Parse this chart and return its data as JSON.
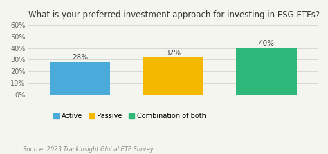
{
  "title": "What is your preferred investment approach for investing in ESG ETFs?",
  "categories": [
    "Active",
    "Passive",
    "Combination of both"
  ],
  "values": [
    28,
    32,
    40
  ],
  "bar_colors": [
    "#4AABDB",
    "#F5B800",
    "#2DB87A"
  ],
  "bar_labels": [
    "28%",
    "32%",
    "40%"
  ],
  "ylim": [
    0,
    60
  ],
  "yticks": [
    0,
    10,
    20,
    30,
    40,
    50,
    60
  ],
  "ytick_labels": [
    "0%",
    "10%",
    "20%",
    "30%",
    "40%",
    "50%",
    "60%"
  ],
  "legend_labels": [
    "Active",
    "Passive",
    "Combination of both"
  ],
  "legend_colors": [
    "#4AABDB",
    "#F5B800",
    "#2DB87A"
  ],
  "source_text": "Source: 2023 Trackinsight Global ETF Survey.",
  "background_color": "#f5f5f0",
  "title_fontsize": 8.5,
  "label_fontsize": 7.5,
  "tick_fontsize": 7,
  "legend_fontsize": 7,
  "source_fontsize": 6
}
